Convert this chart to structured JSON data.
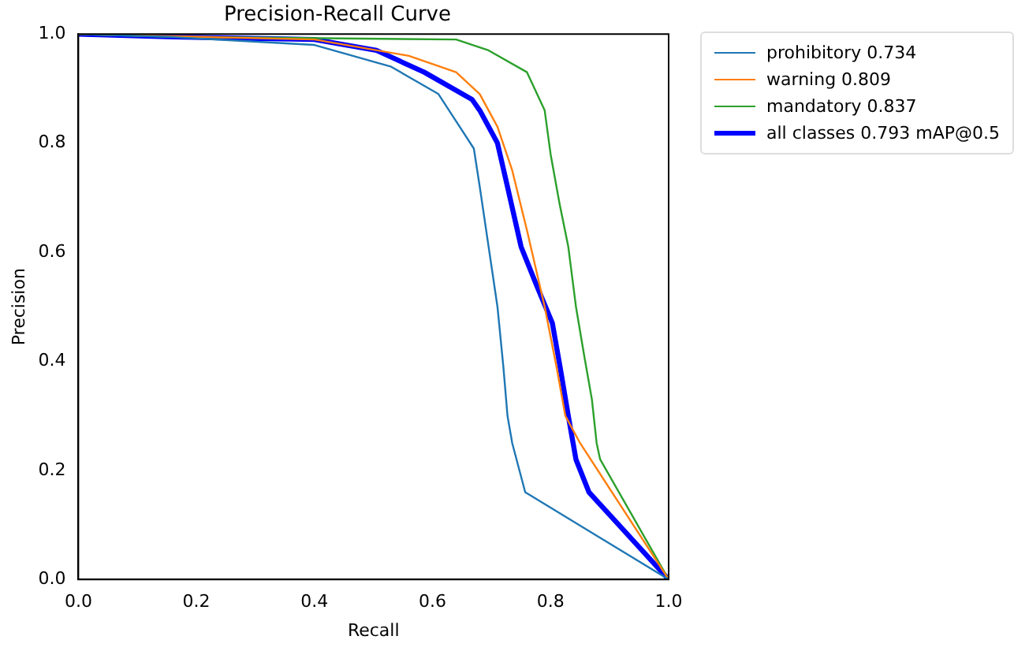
{
  "chart_data": {
    "type": "line",
    "title": "Precision-Recall Curve",
    "xlabel": "Recall",
    "ylabel": "Precision",
    "xlim": [
      0,
      1
    ],
    "ylim": [
      0,
      1
    ],
    "xticks": [
      {
        "value": 0,
        "label": "0.0"
      },
      {
        "value": 0.2,
        "label": "0.2"
      },
      {
        "value": 0.4,
        "label": "0.4"
      },
      {
        "value": 0.6,
        "label": "0.6"
      },
      {
        "value": 0.8,
        "label": "0.8"
      },
      {
        "value": 1,
        "label": "1.0"
      }
    ],
    "yticks": [
      {
        "value": 0,
        "label": "0.0"
      },
      {
        "value": 0.2,
        "label": "0.2"
      },
      {
        "value": 0.4,
        "label": "0.4"
      },
      {
        "value": 0.6,
        "label": "0.6"
      },
      {
        "value": 0.8,
        "label": "0.8"
      },
      {
        "value": 1,
        "label": "1.0"
      }
    ],
    "grid": false,
    "legend": "top right",
    "marker": "none",
    "line_style": "solid",
    "series": [
      {
        "name": "prohibitory 0.734",
        "color": "#1f77b4",
        "x": [
          0,
          0.15,
          0.4,
          0.53,
          0.61,
          0.64,
          0.67,
          0.68,
          0.695,
          0.71,
          0.72,
          0.727,
          0.735,
          0.757,
          1
        ],
        "values": [
          1,
          0.995,
          0.98,
          0.94,
          0.89,
          0.84,
          0.79,
          0.72,
          0.61,
          0.5,
          0.39,
          0.3,
          0.25,
          0.16,
          0
        ]
      },
      {
        "name": "warning 0.809",
        "color": "#ff7f0e",
        "x": [
          0,
          0.4,
          0.56,
          0.64,
          0.68,
          0.71,
          0.735,
          0.76,
          0.79,
          0.81,
          0.825,
          0.85,
          1
        ],
        "values": [
          1,
          0.99,
          0.96,
          0.93,
          0.89,
          0.83,
          0.75,
          0.64,
          0.5,
          0.39,
          0.3,
          0.25,
          0
        ]
      },
      {
        "name": "mandatory 0.837",
        "color": "#2ca02c",
        "x": [
          0,
          0.15,
          0.64,
          0.695,
          0.76,
          0.79,
          0.8,
          0.815,
          0.83,
          0.843,
          0.857,
          0.87,
          0.878,
          0.884,
          1
        ],
        "values": [
          1,
          0.995,
          0.99,
          0.97,
          0.93,
          0.86,
          0.78,
          0.69,
          0.61,
          0.5,
          0.41,
          0.33,
          0.25,
          0.22,
          0
        ]
      },
      {
        "name": "all classes 0.793 mAP@0.5",
        "color": "#0000ff",
        "x": [
          0,
          0.15,
          0.4,
          0.505,
          0.586,
          0.667,
          0.68,
          0.71,
          0.727,
          0.75,
          0.776,
          0.803,
          0.816,
          0.83,
          0.843,
          0.865,
          1
        ],
        "values": [
          1,
          0.995,
          0.99,
          0.97,
          0.93,
          0.88,
          0.86,
          0.8,
          0.72,
          0.61,
          0.54,
          0.47,
          0.39,
          0.3,
          0.22,
          0.16,
          0
        ]
      }
    ]
  }
}
